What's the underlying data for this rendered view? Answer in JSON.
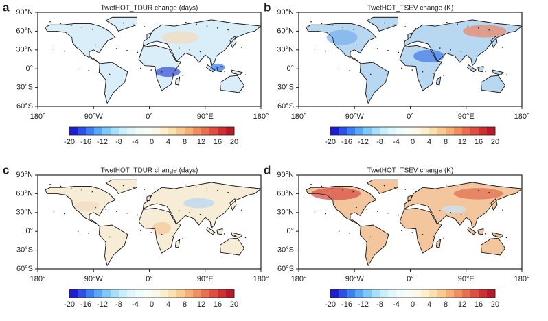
{
  "panels": [
    {
      "letter": "a",
      "title": "TwetHOT_TDUR change (days)"
    },
    {
      "letter": "b",
      "title": "TwetHOT_TSEV change (K)"
    },
    {
      "letter": "c",
      "title": "TwetHOT_TDUR change (days)"
    },
    {
      "letter": "d",
      "title": "TwetHOT_TSEV change (K)"
    }
  ],
  "lat_labels": [
    "90°N",
    "60°N",
    "30°N",
    "0°",
    "30°S",
    "60°S"
  ],
  "lon_labels": [
    "180°",
    "90°W",
    "0°",
    "90°E",
    "180°"
  ],
  "colorbar": {
    "ticks": [
      -20,
      -16,
      -12,
      -8,
      -4,
      0,
      4,
      8,
      12,
      16,
      20
    ],
    "colors": [
      "#1e1ed0",
      "#2e4fe6",
      "#3c7ff0",
      "#5aa8f5",
      "#80c8fa",
      "#a8e0fb",
      "#c8f0fc",
      "#e0f8fc",
      "#eefbfb",
      "#f8fcf8",
      "#fcf8e8",
      "#fcefcc",
      "#fbe0b0",
      "#f8cc90",
      "#f5b078",
      "#f09060",
      "#e87050",
      "#dd5040",
      "#cc3030",
      "#b81a2a"
    ]
  }
}
